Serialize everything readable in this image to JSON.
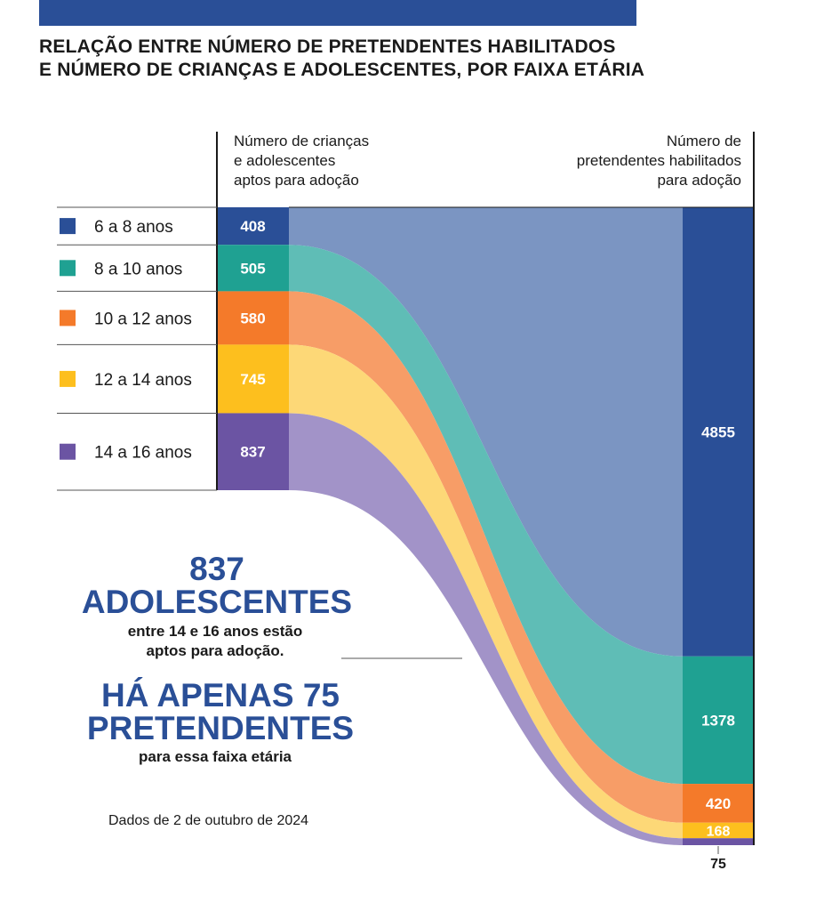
{
  "header": {
    "title_line1": "RELAÇÃO ENTRE NÚMERO DE PRETENDENTES HABILITADOS",
    "title_line2": "E NÚMERO DE CRIANÇAS E ADOLESCENTES, POR FAIXA ETÁRIA",
    "left_col_line1": "Número de crianças",
    "left_col_line2": "e adolescentes",
    "left_col_line3": "aptos para adoção",
    "right_col_line1": "Número de",
    "right_col_line2": "pretendentes habilitados",
    "right_col_line3": "para adoção"
  },
  "colors": {
    "bar_top": "#2a4f97",
    "title_accent": "#2a4f97"
  },
  "chart_data": {
    "type": "sankey",
    "categories": [
      "6 a 8 anos",
      "8 a 10 anos",
      "10 a 12 anos",
      "12 a 14 anos",
      "14 a 16 anos"
    ],
    "series": [
      {
        "name": "Número de crianças e adolescentes aptos para adoção",
        "values": [
          408,
          505,
          580,
          745,
          837
        ]
      },
      {
        "name": "Número de pretendentes habilitados para adoção",
        "values": [
          4855,
          1378,
          420,
          168,
          75
        ]
      }
    ],
    "colors": [
      "#2a4f97",
      "#1fa192",
      "#f47a2a",
      "#fdbf1e",
      "#6b54a3"
    ],
    "flow_colors": [
      "#7b95c2",
      "#5fbdb6",
      "#f79d67",
      "#fdd877",
      "#a293c8"
    ],
    "value_labels_left": [
      "408",
      "505",
      "580",
      "745",
      "837"
    ],
    "value_labels_right": [
      "4855",
      "1378",
      "420",
      "168",
      "75"
    ]
  },
  "annotation": {
    "big_line1": "837",
    "big_line2": "ADOLESCENTES",
    "small_line1": "entre 14 e 16 anos estão",
    "small_line2": "aptos para adoção.",
    "big_line3": "HÁ APENAS 75",
    "big_line4": "PRETENDENTES",
    "small_line3": "para essa faixa etária"
  },
  "source": "Dados de 2 de outubro de 2024"
}
